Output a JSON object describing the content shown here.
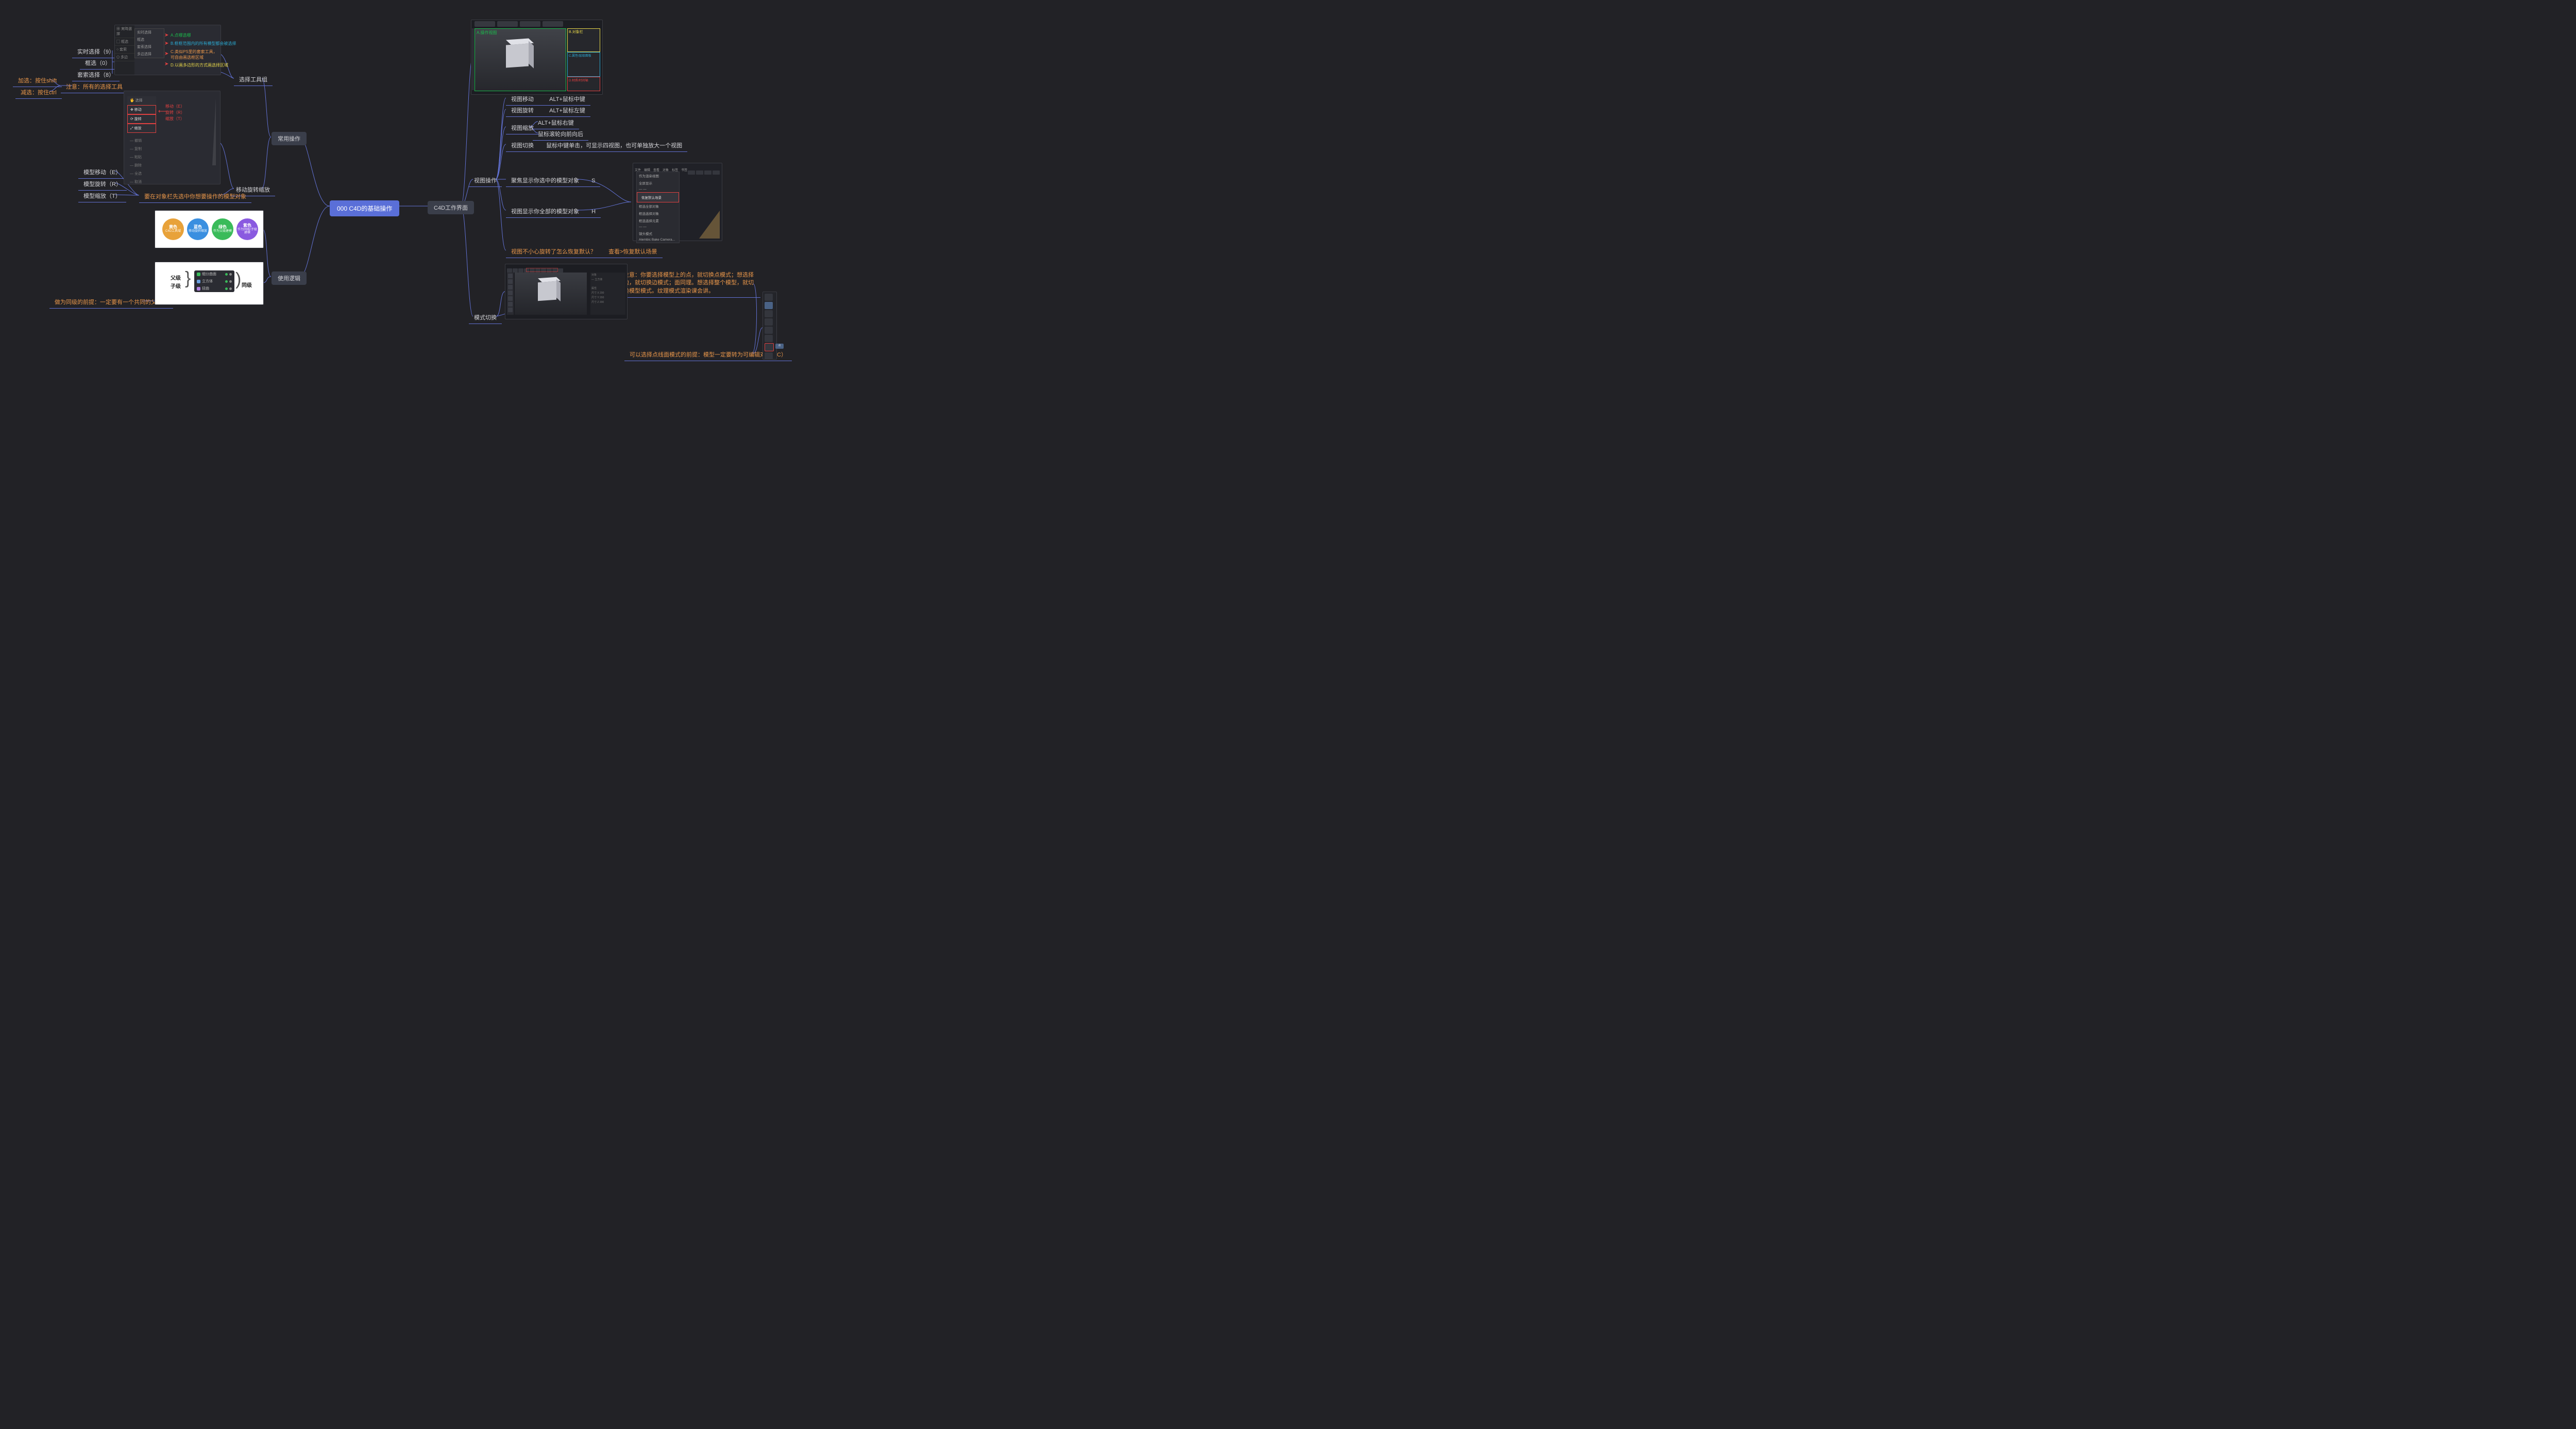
{
  "colors": {
    "bg": "#222226",
    "link": "#6272d4",
    "text": "#d4d4d8",
    "orange": "#e8964a",
    "nodeGrayBg": "#3a3e4a",
    "rootBg": "#5a6fd8",
    "red": "#e04040",
    "green": "#1abc4c",
    "yellow": "#e8d84a",
    "cyan": "#2aa8d0"
  },
  "root": {
    "label": "000 C4D的基础操作"
  },
  "left": {
    "common": {
      "label": "常用操作"
    },
    "logic": {
      "label": "使用逻辑"
    },
    "selectGroup": {
      "label": "选择工具组"
    },
    "moveRotScale": {
      "label": "移动旋转缩放"
    },
    "realtime": {
      "label": "实时选择（9）"
    },
    "rect": {
      "label": "框选（0）"
    },
    "lasso": {
      "label": "套索选择（8）"
    },
    "noteAll": {
      "label": "注意：所有的选择工具"
    },
    "addSel": {
      "label": "加选：按住shift"
    },
    "subSel": {
      "label": "减选：按住ctrl"
    },
    "moveE": {
      "label": "模型移动（E）"
    },
    "rotR": {
      "label": "模型旋转（R）"
    },
    "scaleT": {
      "label": "模型缩放（T）"
    },
    "mustSelect": {
      "label": "要在对象栏先选中你想要操作的模型对象"
    },
    "siblingNote": {
      "label": "做为同级的前提：一定要有一个共同的父对象"
    }
  },
  "right": {
    "workspace": {
      "label": "C4D工作界面"
    },
    "viewOps": {
      "label": "视图操作"
    },
    "modeSwitch": {
      "label": "模式切换"
    },
    "viewMove": {
      "label": "视图移动",
      "key": "ALT+鼠标中键"
    },
    "viewRot": {
      "label": "视图旋转",
      "key": "ALT+鼠标左键"
    },
    "viewZoom": {
      "label": "视图缩放"
    },
    "zoomKey1": {
      "label": "ALT+鼠标右键"
    },
    "zoomKey2": {
      "label": "鼠标滚轮向前向后"
    },
    "viewSwitch": {
      "label": "视图切换",
      "key": "鼠标中键单击，可显示四视图，也可单独放大一个视图"
    },
    "focusSel": {
      "label": "聚焦显示你选中的模型对象",
      "key": "S"
    },
    "focusAll": {
      "label": "视图显示你全部的模型对象",
      "key": "H"
    },
    "restore": {
      "label": "视图不小心旋转了怎么恢复默认？",
      "ans": "查看>恢复默认场景"
    },
    "modeNote": {
      "label": "注意：你要选择模型上的点，就切换点模式；想选择边，就切换边模式；面同理。想选择整个模型，就切换模型模式。纹理模式渲染课会讲。"
    },
    "modeReq": {
      "label": "可以选择点线面模式的前提：模型一定要转为可编辑对象（C）"
    }
  },
  "thumb1": {
    "sidebar": [
      "▦ 実時選擇",
      "▢ 框选",
      "○ 套索",
      "⬠ 多边"
    ],
    "panel": [
      "实时选择",
      "框选",
      "套索选择",
      "多边选择"
    ],
    "annos": [
      {
        "color": "#1abc4c",
        "text": "A.点哪选哪"
      },
      {
        "color": "#2aa8d0",
        "text": "B.框框范围内的所有模型都会被选择"
      },
      {
        "color": "#e8964a",
        "text": "C.类似PS里的套索工具，可自由画选框区域"
      },
      {
        "color": "#e8d84a",
        "text": "D.以画多边形的方式画选择区域"
      }
    ]
  },
  "thumb2": {
    "panel": [
      "🖐 选择",
      "✥ 移动",
      "⟳ 旋转",
      "⤢ 缩放"
    ],
    "annos": [
      "移动（E）",
      "旋转（R）",
      "缩放（T）"
    ],
    "panel2": [
      "— 撤销",
      "— 复制",
      "— 粘贴",
      "— 删除",
      "— 全选",
      "— 取消"
    ]
  },
  "thumb3": {
    "circles": [
      {
        "c": "#e8a23a",
        "t1": "黄色",
        "t2": "C4D工具域"
      },
      {
        "c": "#3a8fe0",
        "t1": "蓝色",
        "t2": "移动旋转缩放"
      },
      {
        "c": "#3abb5a",
        "t1": "绿色",
        "t2": "作为父级建模"
      },
      {
        "c": "#8a5ae0",
        "t1": "紫色",
        "t2": "作为同级/子级建模"
      }
    ]
  },
  "thumb4": {
    "parent": "父级",
    "child": "子级",
    "sibling": "同级",
    "items": [
      {
        "ic": "#3abb5a",
        "label": "细分曲面"
      },
      {
        "ic": "#6aa0e0",
        "label": "立方体"
      },
      {
        "ic": "#b080e0",
        "label": "扭曲"
      }
    ]
  },
  "thumb5": {
    "a": "A.操作视图",
    "b": "B.对象栏",
    "c": "C.属性/层级面板",
    "d": "D.材质/时间轴"
  },
  "thumb6": {
    "menubar": [
      "文件",
      "编辑",
      "查看",
      "对象",
      "标签",
      "书签"
    ],
    "highlight": "恢复默认场景",
    "items": [
      "作为渲染视图",
      "全屏显示",
      "— —",
      "恢复默认场景",
      "框选全部对象",
      "框选选择对象",
      "框选选择元素",
      "— —",
      "镜头模式",
      "Alembic Bake Camera..."
    ]
  },
  "thumb7": {
    "note": "模式"
  },
  "thumb8": {
    "items": [
      "",
      "",
      "",
      "",
      "",
      "",
      "",
      "",
      "",
      "",
      ""
    ],
    "bubble": "点"
  }
}
